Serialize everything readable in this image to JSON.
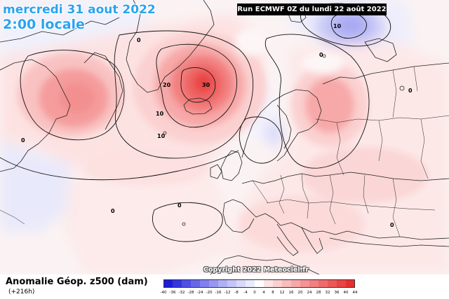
{
  "header": {
    "date_line": "mercredi 31 aout 2022",
    "time_line": "2:00 locale",
    "run_info": "Run ECMWF 0Z du lundi 22 août 2022"
  },
  "footer": {
    "field_title": "Anomalie Géop. z500 (dam)",
    "lead_time": "(+216h)",
    "copyright": "Copyright 2022 Meteociel.fr"
  },
  "legend": {
    "values": [
      "-40",
      "-36",
      "-32",
      "-28",
      "-24",
      "-20",
      "-16",
      "-12",
      "-8",
      "-4",
      "0",
      "4",
      "8",
      "12",
      "16",
      "20",
      "24",
      "28",
      "32",
      "36",
      "40",
      "44"
    ],
    "colors": [
      "#1d1dd6",
      "#3535e0",
      "#4f4fe6",
      "#6767ea",
      "#8080ef",
      "#9898f2",
      "#b0b0f5",
      "#c4c4f8",
      "#d8d8fa",
      "#eaeafc",
      "#ffffff",
      "#fde4e4",
      "#fbd0d0",
      "#f9bcbc",
      "#f7a8a8",
      "#f59494",
      "#f28080",
      "#ef6c6c",
      "#ec5858",
      "#e94444",
      "#e63030"
    ]
  },
  "map": {
    "contour_labels": [
      "10",
      "0",
      "20",
      "30",
      "10",
      "10",
      "0",
      "0",
      "0",
      "0",
      "0",
      "0"
    ]
  }
}
